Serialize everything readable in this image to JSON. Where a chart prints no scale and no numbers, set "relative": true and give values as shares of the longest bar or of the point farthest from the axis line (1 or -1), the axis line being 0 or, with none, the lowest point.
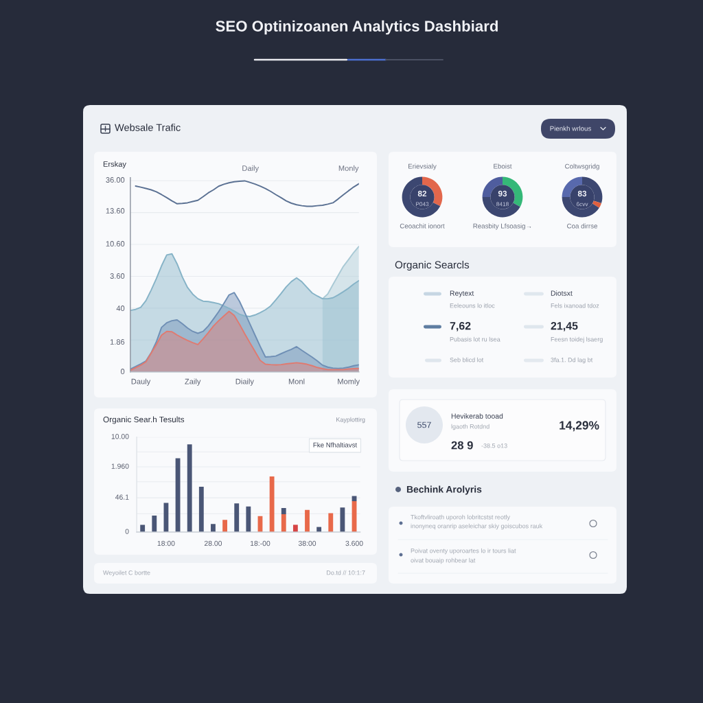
{
  "chart_data": [
    {
      "type": "other",
      "title": "SEO Optinizoanen Analytics Dashbiard",
      "annotations": [
        "Websale Trafic",
        "Pienkh wrlous"
      ]
    },
    {
      "type": "area",
      "relative": true,
      "ylabel": "Erskay",
      "grid": "y",
      "categories": [
        null,
        null,
        "Dauly",
        null,
        null,
        null,
        null,
        null,
        null,
        null,
        null,
        null,
        "Zaily",
        null,
        null,
        null,
        null,
        null,
        null,
        null,
        null,
        null,
        "Diaily",
        null,
        null,
        null,
        null,
        null,
        null,
        null,
        null,
        null,
        "Monl",
        null,
        null,
        null,
        null,
        null,
        null,
        null,
        null,
        null,
        "Momly",
        null,
        null
      ],
      "annotations": [
        "36.00",
        "13.60",
        "10.60",
        "3.60",
        "40",
        "1.86",
        "0",
        "Daily",
        "Monly"
      ],
      "series": [
        {
          "color": "#a9c9d5",
          "values": [
            null,
            null,
            null,
            null,
            null,
            null,
            null,
            null,
            null,
            null,
            null,
            null,
            null,
            null,
            null,
            null,
            null,
            null,
            null,
            null,
            null,
            null,
            null,
            null,
            null,
            null,
            null,
            null,
            null,
            null,
            null,
            null,
            null,
            null,
            null,
            null,
            null,
            0.383,
            0.408,
            0.457,
            0.505,
            0.552,
            0.588,
            0.625,
            0.657
          ]
        },
        {
          "color": "#86b3c7",
          "values": [
            0.322,
            0.327,
            0.338,
            0.373,
            0.428,
            0.488,
            0.555,
            0.612,
            0.618,
            0.565,
            0.497,
            0.442,
            0.407,
            0.383,
            0.37,
            0.368,
            0.363,
            0.357,
            0.345,
            0.333,
            0.318,
            0.302,
            0.293,
            0.29,
            0.298,
            0.31,
            0.325,
            0.345,
            0.377,
            0.41,
            0.445,
            0.473,
            0.492,
            0.472,
            0.442,
            0.413,
            0.397,
            0.383,
            0.383,
            0.388,
            0.403,
            0.42,
            0.438,
            0.46,
            0.478
          ]
        },
        {
          "color": "#6f8fb5",
          "values": [
            0.015,
            0.028,
            0.042,
            0.057,
            0.1,
            0.157,
            0.233,
            0.257,
            0.268,
            0.272,
            0.252,
            0.23,
            0.212,
            0.202,
            0.212,
            0.24,
            0.277,
            0.315,
            0.358,
            0.403,
            0.415,
            0.37,
            0.312,
            0.252,
            0.192,
            0.133,
            0.078,
            0.08,
            0.083,
            0.095,
            0.107,
            0.118,
            0.132,
            0.113,
            0.095,
            0.077,
            0.057,
            0.035,
            0.025,
            0.02,
            0.018,
            0.02,
            0.025,
            0.032,
            0.037
          ]
        },
        {
          "color": "#e07a70",
          "values": [
            0.008,
            0.022,
            0.035,
            0.053,
            0.098,
            0.143,
            0.192,
            0.212,
            0.21,
            0.193,
            0.178,
            0.165,
            0.153,
            0.143,
            0.173,
            0.205,
            0.24,
            0.268,
            0.293,
            0.317,
            0.295,
            0.25,
            0.2,
            0.153,
            0.107,
            0.06,
            0.04,
            0.038,
            0.037,
            0.038,
            0.042,
            0.045,
            0.048,
            0.045,
            0.04,
            0.032,
            0.023,
            0.017,
            0.012,
            0.012,
            0.012,
            0.012,
            0.015,
            0.017,
            0.018
          ]
        },
        {
          "type": "line",
          "color": "#5b7193",
          "values": [
            null,
            0.973,
            0.967,
            0.96,
            0.953,
            0.943,
            0.928,
            0.912,
            0.895,
            0.88,
            0.882,
            0.885,
            0.892,
            0.898,
            0.917,
            0.937,
            0.953,
            0.972,
            0.982,
            0.99,
            0.995,
            0.998,
            1,
            0.992,
            0.983,
            0.972,
            0.96,
            0.945,
            0.928,
            0.912,
            0.895,
            0.883,
            0.875,
            0.87,
            0.867,
            0.867,
            0.87,
            0.872,
            0.878,
            0.885,
            0.905,
            0.927,
            0.948,
            0.968,
            0.985
          ]
        }
      ]
    },
    {
      "type": "donut",
      "title": "Erievsialy",
      "categories": [
        null,
        null
      ],
      "values": [
        32.5,
        67.5
      ],
      "colors": [
        "#e2674c",
        "#3c4771"
      ],
      "annotations": [
        "82",
        "P043",
        "Ceoachit ionort"
      ]
    },
    {
      "type": "donut",
      "title": "Eboist",
      "categories": [
        null,
        null,
        null
      ],
      "values": [
        33,
        42,
        25
      ],
      "colors": [
        "#35b878",
        "#3c4771",
        "#4f5d9e"
      ],
      "annotations": [
        "93",
        "8418",
        "Reasbity Lfsoasig→"
      ]
    },
    {
      "type": "donut",
      "title": "Coltwsgridg",
      "categories": [
        null,
        null,
        null,
        null
      ],
      "values": [
        30,
        4,
        41,
        25
      ],
      "colors": [
        "#3c4771",
        "#e0603f",
        "#3c4771",
        "#5869ad"
      ],
      "annotations": [
        "83",
        "6cvv",
        "Coa dirrse"
      ]
    },
    {
      "type": "other",
      "title": "Organic Searcls",
      "annotations": [
        "Reytext",
        "Eeleouns lo itloc",
        "7,62",
        "Pubasis lot ru lsea",
        "Seb blicd lot",
        "Diotsxt",
        "Fels ixanoad tdoz",
        "21,45",
        "Feesn toidej lsaerg",
        "3fa.1. Dd lag bt"
      ]
    },
    {
      "type": "other",
      "annotations": [
        "557",
        "Hevikerab tooad",
        "lgaoth Rotdnd",
        "28 9",
        "-38.5 o13",
        "14,29%"
      ]
    },
    {
      "type": "bar",
      "relative": true,
      "title": "Organic Sear.h Tesults",
      "stacked": true,
      "grid": "y",
      "categories": [
        null,
        null,
        "18:00",
        null,
        null,
        null,
        "28.00",
        null,
        null,
        null,
        "18:-00",
        null,
        null,
        null,
        "38:00",
        null,
        null,
        null,
        "3.600"
      ],
      "annotations": [
        "Kayplottirg",
        "Fke Nfhaltiavst",
        "10.00",
        "1.960",
        "46.1",
        "0"
      ],
      "series": [
        {
          "color": "#e8694a",
          "colors": [
            null,
            null,
            null,
            null,
            null,
            null,
            null,
            "#e8694a",
            null,
            null,
            "#e8694a",
            "#e8694a",
            "#e8694a",
            "#d64545",
            "#e8694a",
            null,
            "#e8694a",
            null,
            "#e8694a"
          ],
          "values": [
            null,
            null,
            null,
            null,
            null,
            null,
            null,
            0.139,
            null,
            null,
            0.182,
            0.634,
            0.204,
            0.083,
            0.253,
            null,
            0.215,
            null,
            0.352
          ]
        },
        {
          "color": "#4a5676",
          "values": [
            0.083,
            0.188,
            0.332,
            0.841,
            1,
            0.516,
            0.092,
            null,
            0.327,
            0.292,
            null,
            null,
            0.07,
            null,
            null,
            0.058,
            null,
            0.28,
            0.06
          ]
        }
      ]
    },
    {
      "type": "other",
      "title": "Bechink Arolyris",
      "annotations": [
        "Tkoftvliroath uporoh lobritcstst reotly",
        "inonyneq oranrip aseleichar skiy goiscubos rauk",
        "Poivat oventy uporoartes lo ir tours liat",
        "oivat bouaip rohbear lat"
      ]
    },
    {
      "type": "other",
      "annotations": [
        "Weyoilet C bortte",
        "Do.td // 10:1:7"
      ]
    }
  ]
}
